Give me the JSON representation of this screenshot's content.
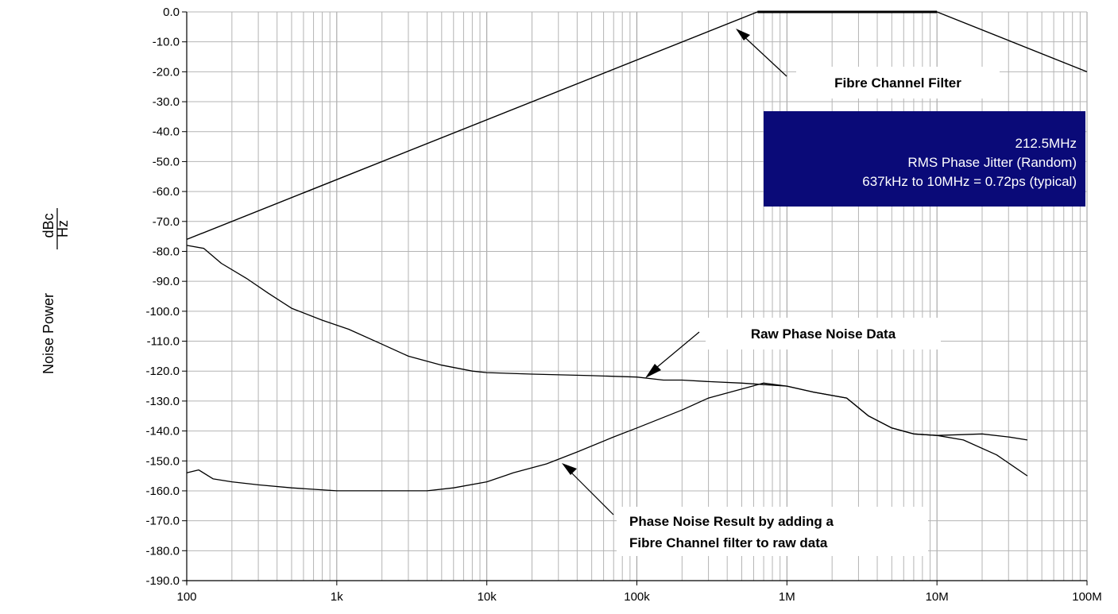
{
  "chart_data": {
    "type": "line",
    "title": "",
    "xlabel": "",
    "ylabel": "Noise Power",
    "ylabel_unit_numerator": "dBc",
    "ylabel_unit_denominator": "Hz",
    "x_scale": "log",
    "xlim": [
      100,
      100000000
    ],
    "ylim": [
      -190,
      0
    ],
    "grid": true,
    "x_ticks": [
      {
        "value": 100,
        "label": "100"
      },
      {
        "value": 1000,
        "label": "1k"
      },
      {
        "value": 10000,
        "label": "10k"
      },
      {
        "value": 100000,
        "label": "100k"
      },
      {
        "value": 1000000,
        "label": "1M"
      },
      {
        "value": 10000000,
        "label": "10M"
      },
      {
        "value": 100000000,
        "label": "100M"
      }
    ],
    "y_ticks": [
      {
        "value": 0,
        "label": "0.0"
      },
      {
        "value": -10,
        "label": "-10.0"
      },
      {
        "value": -20,
        "label": "-20.0"
      },
      {
        "value": -30,
        "label": "-30.0"
      },
      {
        "value": -40,
        "label": "-40.0"
      },
      {
        "value": -50,
        "label": "-50.0"
      },
      {
        "value": -60,
        "label": "-60.0"
      },
      {
        "value": -70,
        "label": "-70.0"
      },
      {
        "value": -80,
        "label": "-80.0"
      },
      {
        "value": -90,
        "label": "-90.0"
      },
      {
        "value": -100,
        "label": "-100.0"
      },
      {
        "value": -110,
        "label": "-110.0"
      },
      {
        "value": -120,
        "label": "-120.0"
      },
      {
        "value": -130,
        "label": "-130.0"
      },
      {
        "value": -140,
        "label": "-140.0"
      },
      {
        "value": -150,
        "label": "-150.0"
      },
      {
        "value": -160,
        "label": "-160.0"
      },
      {
        "value": -170,
        "label": "-170.0"
      },
      {
        "value": -180,
        "label": "-180.0"
      },
      {
        "value": -190,
        "label": "-190.0"
      }
    ],
    "series": [
      {
        "id": "filter",
        "points": [
          [
            100,
            -76
          ],
          [
            637000,
            0
          ],
          [
            10000000,
            0
          ],
          [
            100000000,
            -20
          ]
        ]
      },
      {
        "id": "raw",
        "points": [
          [
            100,
            -78
          ],
          [
            130,
            -79
          ],
          [
            170,
            -84
          ],
          [
            250,
            -89
          ],
          [
            350,
            -94
          ],
          [
            500,
            -99
          ],
          [
            800,
            -103
          ],
          [
            1200,
            -106
          ],
          [
            2000,
            -111
          ],
          [
            3000,
            -115
          ],
          [
            5000,
            -118
          ],
          [
            8000,
            -120
          ],
          [
            10000,
            -120.5
          ],
          [
            20000,
            -121
          ],
          [
            50000,
            -121.5
          ],
          [
            100000,
            -122
          ],
          [
            150000,
            -123
          ],
          [
            200000,
            -123
          ],
          [
            300000,
            -123.5
          ],
          [
            500000,
            -124
          ],
          [
            700000,
            -124.5
          ],
          [
            1000000,
            -125
          ],
          [
            1500000,
            -127
          ],
          [
            2500000,
            -129
          ],
          [
            3500000,
            -135
          ],
          [
            5000000,
            -139
          ],
          [
            7000000,
            -141
          ],
          [
            10000000,
            -141.5
          ],
          [
            20000000,
            -141
          ],
          [
            30000000,
            -142
          ],
          [
            40000000,
            -143
          ]
        ]
      },
      {
        "id": "filtered",
        "points": [
          [
            100,
            -154
          ],
          [
            120,
            -153
          ],
          [
            150,
            -156
          ],
          [
            200,
            -157
          ],
          [
            300,
            -158
          ],
          [
            500,
            -159
          ],
          [
            1000,
            -160
          ],
          [
            2000,
            -160
          ],
          [
            4000,
            -160
          ],
          [
            6000,
            -159
          ],
          [
            10000,
            -157
          ],
          [
            15000,
            -154
          ],
          [
            25000,
            -151
          ],
          [
            40000,
            -147
          ],
          [
            70000,
            -142
          ],
          [
            100000,
            -139
          ],
          [
            200000,
            -133
          ],
          [
            300000,
            -129
          ],
          [
            500000,
            -126
          ],
          [
            700000,
            -124
          ],
          [
            1000000,
            -125
          ],
          [
            1500000,
            -127
          ],
          [
            2500000,
            -129
          ],
          [
            3500000,
            -135
          ],
          [
            5000000,
            -139
          ],
          [
            7000000,
            -141
          ],
          [
            10000000,
            -141.5
          ],
          [
            15000000,
            -143
          ],
          [
            25000000,
            -148
          ],
          [
            40000000,
            -155
          ]
        ]
      }
    ],
    "annotations": {
      "filter_label": "Fibre Channel Filter",
      "raw_label": "Raw Phase Noise Data",
      "filtered_label_1": "Phase Noise Result by adding a",
      "filtered_label_2": "Fibre Channel filter to raw data"
    },
    "info_box": {
      "line1": "212.5MHz",
      "line2": "RMS Phase Jitter (Random)",
      "line3": "637kHz to 10MHz = 0.72ps (typical)",
      "background": "#0a0a78"
    }
  }
}
